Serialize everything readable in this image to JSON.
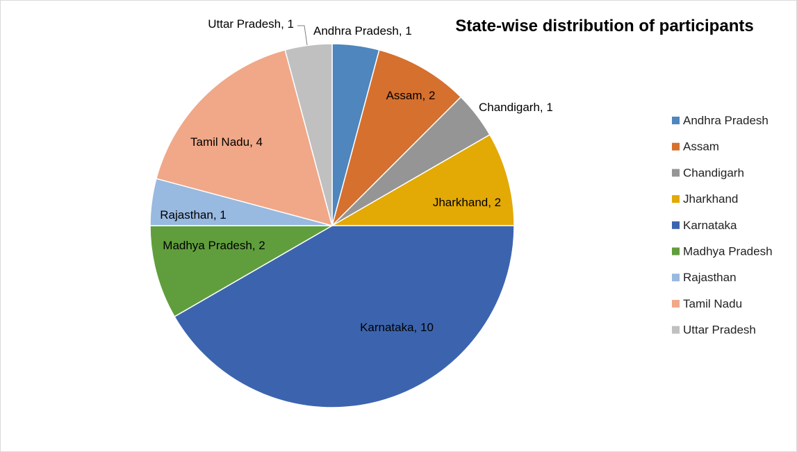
{
  "chart_data": {
    "type": "pie",
    "title": "State-wise distribution of participants",
    "categories": [
      "Andhra Pradesh",
      "Assam",
      "Chandigarh",
      "Jharkhand",
      "Karnataka",
      "Madhya Pradesh",
      "Rajasthan",
      "Tamil Nadu",
      "Uttar Pradesh"
    ],
    "values": [
      1,
      2,
      1,
      2,
      10,
      2,
      1,
      4,
      1
    ],
    "data_labels": [
      "Andhra Pradesh, 1",
      "Assam, 2",
      "Chandigarh, 1",
      "Jharkhand, 2",
      "Karnataka, 10",
      "Madhya Pradesh, 2",
      "Rajasthan, 1",
      "Tamil Nadu, 4",
      "Uttar Pradesh, 1"
    ],
    "colors": [
      "#4e86bd",
      "#d5702e",
      "#959595",
      "#e3a905",
      "#3c64ae",
      "#609e3d",
      "#98b9e0",
      "#f0a888",
      "#c0c0c0"
    ],
    "legend_position": "right",
    "start_angle": "12 o'clock",
    "direction": "clockwise"
  }
}
